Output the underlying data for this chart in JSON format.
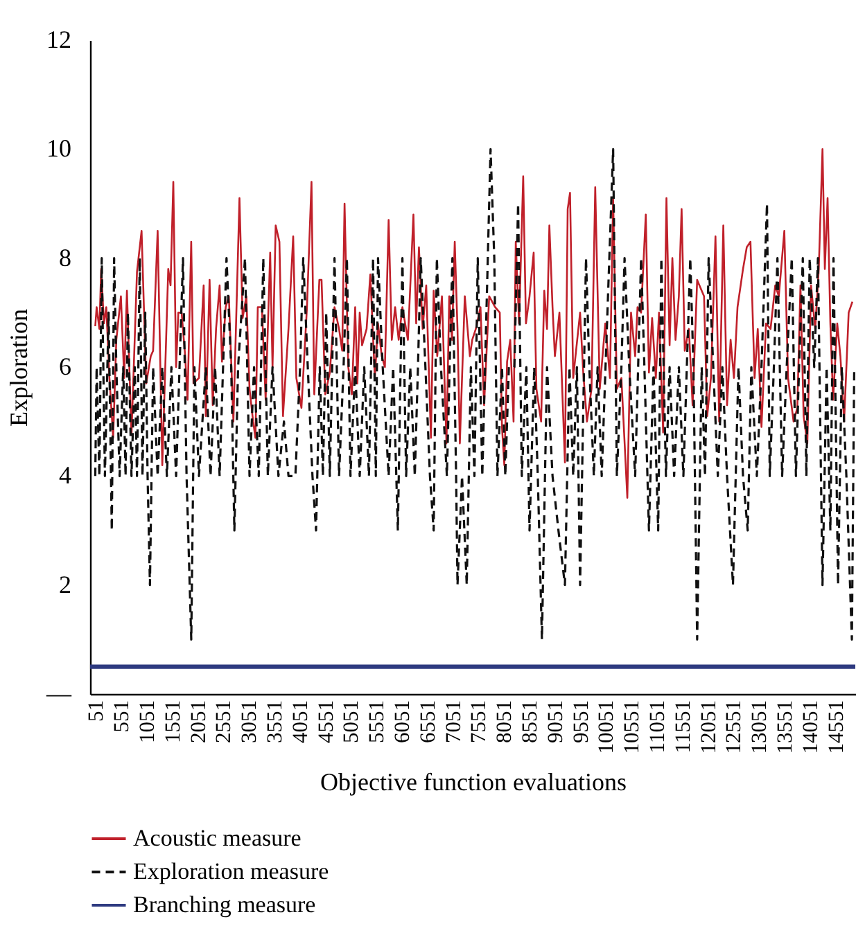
{
  "chart_data": {
    "type": "line",
    "xlabel": "Objective function evaluations",
    "ylabel": "Exploration",
    "xlim": [
      -50,
      14950
    ],
    "xticks": [
      51,
      551,
      1051,
      1551,
      2051,
      2551,
      3051,
      3551,
      4051,
      4551,
      5051,
      5551,
      6051,
      6551,
      7051,
      7551,
      8051,
      8551,
      9051,
      9551,
      10051,
      10551,
      11051,
      11551,
      12051,
      12551,
      13051,
      13551,
      14051,
      14551
    ],
    "ylim": [
      0,
      12
    ],
    "yticks": [
      {
        "value": 0,
        "label": "—"
      },
      2,
      4,
      6,
      8,
      10,
      12
    ],
    "grid": false,
    "legend": "bottom",
    "series": [
      {
        "name": "Acoustic measure",
        "color": "#c0202a",
        "line_style": "solid",
        "x": [
          51,
          78,
          132,
          167,
          221,
          267,
          329,
          402,
          464,
          554,
          618,
          672,
          761,
          869,
          959,
          1050,
          1139,
          1185,
          1274,
          1365,
          1482,
          1527,
          1581,
          1636,
          1679,
          1744,
          1814,
          1860,
          1932,
          1976,
          2084,
          2176,
          2219,
          2292,
          2354,
          2419,
          2489,
          2535,
          2608,
          2670,
          2759,
          2878,
          2940,
          3013,
          3075,
          3146,
          3191,
          3237,
          3318,
          3391,
          3480,
          3526,
          3588,
          3661,
          3731,
          3839,
          3931,
          3993,
          4093,
          4201,
          4290,
          4344,
          4444,
          4487,
          4560,
          4649,
          4741,
          4830,
          4892,
          4938,
          5011,
          5081,
          5146,
          5189,
          5235,
          5281,
          5370,
          5443,
          5532,
          5594,
          5667,
          5729,
          5802,
          5864,
          5929,
          5999,
          6072,
          6180,
          6288,
          6342,
          6396,
          6469,
          6539,
          6631,
          6685,
          6755,
          6847,
          6936,
          6990,
          7044,
          7098,
          7152,
          7198,
          7295,
          7395,
          7441,
          7511,
          7603,
          7673,
          7773,
          7889,
          7981,
          8024,
          8070,
          8124,
          8186,
          8251,
          8294,
          8359,
          8440,
          8494,
          8564,
          8645,
          8699,
          8791,
          8853,
          8907,
          8953,
          9015,
          9061,
          9150,
          9258,
          9312,
          9358,
          9420,
          9555,
          9617,
          9690,
          9779,
          9852,
          9941,
          10049,
          10141,
          10203,
          10276,
          10365,
          10481,
          10554,
          10635,
          10681,
          10751,
          10843,
          10905,
          10967,
          11040,
          11102,
          11183,
          11248,
          11310,
          11364,
          11426,
          11491,
          11545,
          11607,
          11688,
          11761,
          11850,
          11985,
          12047,
          12120,
          12209,
          12282,
          12363,
          12436,
          12506,
          12571,
          12641,
          12749,
          12822,
          12895,
          12976,
          13038,
          13111,
          13200,
          13289,
          13381,
          13451,
          13559,
          13632,
          13740,
          13813,
          13875,
          13937,
          14010,
          14083,
          14164,
          14234,
          14307,
          14353,
          14407,
          14461,
          14515,
          14596,
          14658,
          14731,
          14820,
          14893
        ],
        "values": [
          6.75,
          7.1,
          6.7,
          7.8,
          6.8,
          7.1,
          5.8,
          4.7,
          6.5,
          7.3,
          5.8,
          7.4,
          4.75,
          7.75,
          8.5,
          5.7,
          6.2,
          6.3,
          8.5,
          4.2,
          7.8,
          7.5,
          9.4,
          6.0,
          7.0,
          7.0,
          6.2,
          5.4,
          8.3,
          5.7,
          5.8,
          7.5,
          5.1,
          7.6,
          5.3,
          6.7,
          7.5,
          6.1,
          7.1,
          7.3,
          5.0,
          9.1,
          6.9,
          7.3,
          5.6,
          5.0,
          4.7,
          7.1,
          7.1,
          5.4,
          8.1,
          6.0,
          8.6,
          8.3,
          5.1,
          6.7,
          8.4,
          5.8,
          5.25,
          7.1,
          9.4,
          5.5,
          7.6,
          7.6,
          5.5,
          5.9,
          7.1,
          6.7,
          6.3,
          9.0,
          6.0,
          5.5,
          7.1,
          5.7,
          7.0,
          6.4,
          6.7,
          7.7,
          5.8,
          6.8,
          6.2,
          6.0,
          8.7,
          6.5,
          7.1,
          6.5,
          7.1,
          6.5,
          8.8,
          6.8,
          8.2,
          6.7,
          7.5,
          4.7,
          7.4,
          6.2,
          7.3,
          4.6,
          7.3,
          6.5,
          8.3,
          6.7,
          4.6,
          7.3,
          6.2,
          6.5,
          6.7,
          7.1,
          5.3,
          7.3,
          7.1,
          7.0,
          4.9,
          4.2,
          6.1,
          6.5,
          5.0,
          8.3,
          6.8,
          9.5,
          6.8,
          7.3,
          8.1,
          5.6,
          5.0,
          7.4,
          6.7,
          8.6,
          7.1,
          6.2,
          7.0,
          4.25,
          8.9,
          9.2,
          5.8,
          7.0,
          5.9,
          5.0,
          5.6,
          9.3,
          5.6,
          6.8,
          5.8,
          9.1,
          5.6,
          5.8,
          3.6,
          7.0,
          6.2,
          7.1,
          7.0,
          8.8,
          5.9,
          6.9,
          5.8,
          7.0,
          4.8,
          9.1,
          6.4,
          8.0,
          6.5,
          7.3,
          8.9,
          6.3,
          6.7,
          5.3,
          7.6,
          7.3,
          5.1,
          5.8,
          8.4,
          5.0,
          8.6,
          5.3,
          6.5,
          5.8,
          7.1,
          7.8,
          8.2,
          8.3,
          5.8,
          6.7,
          4.9,
          6.8,
          6.7,
          7.5,
          7.3,
          8.5,
          5.8,
          5.0,
          5.25,
          7.5,
          5.1,
          4.6,
          7.5,
          6.7,
          7.8,
          10.0,
          7.8,
          9.1,
          6.8,
          5.4,
          6.8,
          6.2,
          5.0,
          7.0,
          7.2
        ]
      },
      {
        "name": "Exploration measure",
        "color": "#111111",
        "line_style": "dashed",
        "x": [
          51,
          78,
          132,
          178,
          240,
          313,
          375,
          421,
          464,
          529,
          599,
          645,
          691,
          761,
          826,
          869,
          923,
          977,
          1031,
          1077,
          1123,
          1185,
          1274,
          1366,
          1455,
          1544,
          1636,
          1771,
          1841,
          1933,
          1995,
          2084,
          2219,
          2311,
          2400,
          2489,
          2624,
          2716,
          2778,
          2851,
          2986,
          3075,
          3164,
          3256,
          3345,
          3434,
          3526,
          3642,
          3750,
          3839,
          3974,
          4066,
          4128,
          4217,
          4309,
          4379,
          4452,
          4514,
          4579,
          4649,
          4741,
          4830,
          4919,
          4984,
          5054,
          5146,
          5235,
          5324,
          5416,
          5497,
          5551,
          5594,
          5686,
          5802,
          5891,
          5983,
          6072,
          6145,
          6226,
          6315,
          6377,
          6431,
          6523,
          6612,
          6685,
          6747,
          6828,
          6944,
          7052,
          7125,
          7152,
          7241,
          7333,
          7414,
          7484,
          7549,
          7638,
          7800,
          7873,
          7935,
          8024,
          8089,
          8159,
          8267,
          8340,
          8413,
          8502,
          8564,
          8656,
          8726,
          8807,
          8907,
          9015,
          9131,
          9258,
          9347,
          9420,
          9493,
          9555,
          9671,
          9736,
          9825,
          9898,
          9979,
          10203,
          10276,
          10365,
          10427,
          10519,
          10635,
          10751,
          10816,
          10905,
          10994,
          11086,
          11148,
          11238,
          11310,
          11399,
          11491,
          11580,
          11715,
          11777,
          11850,
          11939,
          12004,
          12075,
          12166,
          12255,
          12344,
          12436,
          12552,
          12660,
          12749,
          12841,
          12912,
          13020,
          13111,
          13219,
          13273,
          13354,
          13424,
          13516,
          13605,
          13705,
          13786,
          13848,
          13921,
          13991,
          14056,
          14145,
          14218,
          14307,
          14388,
          14461,
          14523,
          14612,
          14685,
          14775,
          14883,
          14929
        ],
        "values": [
          4,
          6,
          4,
          8,
          4,
          7,
          3,
          8,
          6,
          4,
          6,
          4,
          7,
          4,
          6,
          4,
          8,
          4,
          7,
          4,
          2,
          6,
          4,
          6,
          4,
          6,
          4,
          8,
          4,
          1,
          6,
          4,
          6,
          4,
          6,
          4,
          8,
          6,
          3,
          6,
          8,
          4,
          6,
          4,
          8,
          4,
          6,
          4,
          5,
          4,
          4,
          6,
          8,
          6,
          4,
          3,
          6,
          4,
          7,
          4,
          8,
          4,
          6,
          8,
          4,
          6,
          4,
          6,
          4,
          8,
          4,
          8,
          6,
          4,
          6,
          3,
          8,
          4,
          6,
          4,
          6,
          8,
          6,
          4,
          3,
          8,
          6,
          4,
          8,
          4,
          2,
          4,
          2,
          6,
          4,
          8,
          4,
          10,
          8,
          4,
          6,
          4,
          6,
          6,
          9,
          4,
          6,
          3,
          6,
          4,
          1,
          6,
          4,
          3,
          2,
          6,
          4,
          6,
          2,
          8,
          6,
          4,
          6,
          4,
          10,
          4,
          6,
          8,
          6,
          4,
          8,
          6,
          3,
          6,
          3,
          8,
          4,
          6,
          4,
          6,
          4,
          8,
          6,
          1,
          6,
          4,
          8,
          6,
          4,
          6,
          4,
          2,
          6,
          4,
          3,
          6,
          4,
          6,
          9,
          4,
          6,
          8,
          4,
          6,
          8,
          4,
          6,
          8,
          4,
          8,
          6,
          8,
          2,
          6,
          3,
          8,
          2,
          6,
          4,
          1,
          6
        ]
      },
      {
        "name": "Branching measure",
        "color": "#2e3a80",
        "line_style": "solid",
        "x": [
          -50,
          14950
        ],
        "values": [
          0.5,
          0.5
        ]
      }
    ]
  }
}
